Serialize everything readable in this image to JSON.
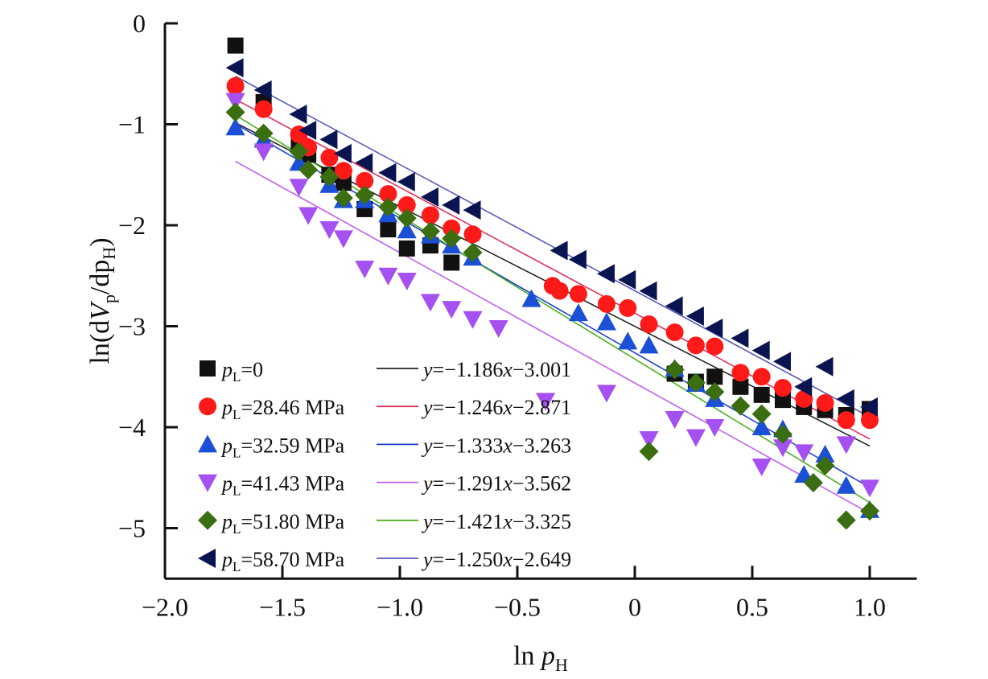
{
  "chart_data": {
    "type": "scatter",
    "xlabel": "ln p_H",
    "ylabel": "ln(dV_p/dp_H)",
    "xlim": [
      -2.0,
      1.2
    ],
    "ylim": [
      -5.5,
      0
    ],
    "xticks": [
      "−2.0",
      "−1.5",
      "−1.0",
      "−0.5",
      "0",
      "0.5",
      "1.0"
    ],
    "xtick_values": [
      -2.0,
      -1.5,
      -1.0,
      -0.5,
      0,
      0.5,
      1.0
    ],
    "yticks": [
      "0",
      "−1",
      "−2",
      "−3",
      "−4",
      "−5"
    ],
    "ytick_values": [
      0,
      -1,
      -2,
      -3,
      -4,
      -5
    ],
    "grid": false,
    "legend_placement": "bottom-left",
    "series": [
      {
        "name": "p_L=0",
        "label_sub": "L",
        "label_rest": "=0",
        "marker": "square",
        "color": "#111111",
        "fit": {
          "label": "y=−1.186x−3.001",
          "slope": -1.186,
          "intercept": -3.001,
          "color": "#222222"
        },
        "points": [
          [
            -1.7,
            -0.22
          ],
          [
            -1.58,
            -0.78
          ],
          [
            -1.43,
            -1.2
          ],
          [
            -1.39,
            -1.3
          ],
          [
            -1.3,
            -1.5
          ],
          [
            -1.24,
            -1.58
          ],
          [
            -1.15,
            -1.84
          ],
          [
            -1.05,
            -2.04
          ],
          [
            -0.97,
            -2.23
          ],
          [
            -0.87,
            -2.2
          ],
          [
            -0.78,
            -2.37
          ],
          [
            0.17,
            -3.47
          ],
          [
            0.26,
            -3.55
          ],
          [
            0.34,
            -3.5
          ],
          [
            0.45,
            -3.6
          ],
          [
            0.54,
            -3.68
          ],
          [
            0.63,
            -3.73
          ],
          [
            0.72,
            -3.8
          ],
          [
            0.81,
            -3.83
          ],
          [
            0.9,
            -3.88
          ],
          [
            1.0,
            -3.82
          ]
        ]
      },
      {
        "name": "p_L=28.46 MPa",
        "label_sub": "L",
        "label_rest": "=28.46 MPa",
        "marker": "circle",
        "color": "#ff1a1a",
        "fit": {
          "label": "y=−1.246x−2.871",
          "slope": -1.246,
          "intercept": -2.871,
          "color": "#e0305a"
        },
        "points": [
          [
            -1.7,
            -0.62
          ],
          [
            -1.58,
            -0.85
          ],
          [
            -1.43,
            -1.1
          ],
          [
            -1.39,
            -1.23
          ],
          [
            -1.3,
            -1.33
          ],
          [
            -1.24,
            -1.46
          ],
          [
            -1.15,
            -1.56
          ],
          [
            -1.05,
            -1.69
          ],
          [
            -0.97,
            -1.8
          ],
          [
            -0.87,
            -1.9
          ],
          [
            -0.78,
            -2.03
          ],
          [
            -0.69,
            -2.09
          ],
          [
            -0.35,
            -2.6
          ],
          [
            -0.32,
            -2.65
          ],
          [
            -0.24,
            -2.68
          ],
          [
            -0.12,
            -2.78
          ],
          [
            -0.03,
            -2.82
          ],
          [
            0.06,
            -2.98
          ],
          [
            0.17,
            -3.06
          ],
          [
            0.26,
            -3.19
          ],
          [
            0.34,
            -3.2
          ],
          [
            0.45,
            -3.46
          ],
          [
            0.54,
            -3.5
          ],
          [
            0.63,
            -3.61
          ],
          [
            0.72,
            -3.72
          ],
          [
            0.81,
            -3.76
          ],
          [
            0.9,
            -3.93
          ],
          [
            1.0,
            -3.93
          ]
        ]
      },
      {
        "name": "p_L=32.59 MPa",
        "label_sub": "L",
        "label_rest": "=32.59 MPa",
        "marker": "triangle-up",
        "color": "#1a4fd6",
        "fit": {
          "label": "y=−1.333x−3.263",
          "slope": -1.333,
          "intercept": -3.263,
          "color": "#2040d0"
        },
        "points": [
          [
            -1.7,
            -1.03
          ],
          [
            -1.58,
            -1.15
          ],
          [
            -1.43,
            -1.38
          ],
          [
            -1.3,
            -1.6
          ],
          [
            -1.24,
            -1.75
          ],
          [
            -1.15,
            -1.75
          ],
          [
            -1.05,
            -1.89
          ],
          [
            -0.97,
            -2.05
          ],
          [
            -0.87,
            -2.1
          ],
          [
            -0.78,
            -2.2
          ],
          [
            -0.69,
            -2.32
          ],
          [
            -0.44,
            -2.73
          ],
          [
            -0.24,
            -2.87
          ],
          [
            -0.12,
            -2.96
          ],
          [
            -0.03,
            -3.15
          ],
          [
            0.06,
            -3.19
          ],
          [
            0.17,
            -3.42
          ],
          [
            0.26,
            -3.57
          ],
          [
            0.34,
            -3.72
          ],
          [
            0.54,
            -4.0
          ],
          [
            0.63,
            -4.02
          ],
          [
            0.72,
            -4.47
          ],
          [
            0.81,
            -4.27
          ],
          [
            0.9,
            -4.58
          ],
          [
            1.0,
            -4.82
          ]
        ]
      },
      {
        "name": "p_L=41.43 MPa",
        "label_sub": "L",
        "label_rest": "=41.43 MPa",
        "marker": "triangle-down",
        "color": "#a550f0",
        "fit": {
          "label": "y=−1.291x−3.562",
          "slope": -1.291,
          "intercept": -3.562,
          "color": "#c060f0"
        },
        "points": [
          [
            -1.7,
            -0.77
          ],
          [
            -1.58,
            -1.27
          ],
          [
            -1.43,
            -1.62
          ],
          [
            -1.39,
            -1.9
          ],
          [
            -1.3,
            -2.04
          ],
          [
            -1.24,
            -2.13
          ],
          [
            -1.15,
            -2.43
          ],
          [
            -1.05,
            -2.5
          ],
          [
            -0.97,
            -2.55
          ],
          [
            -0.87,
            -2.76
          ],
          [
            -0.78,
            -2.83
          ],
          [
            -0.69,
            -2.93
          ],
          [
            -0.58,
            -3.02
          ],
          [
            -0.38,
            -3.74
          ],
          [
            -0.12,
            -3.66
          ],
          [
            0.06,
            -4.12
          ],
          [
            0.17,
            -3.92
          ],
          [
            0.26,
            -4.1
          ],
          [
            0.34,
            -4.0
          ],
          [
            0.54,
            -4.39
          ],
          [
            0.63,
            -4.2
          ],
          [
            0.72,
            -4.25
          ],
          [
            0.9,
            -4.17
          ],
          [
            1.0,
            -4.6
          ]
        ]
      },
      {
        "name": "p_L=51.80 MPa",
        "label_sub": "L",
        "label_rest": "=51.80 MPa",
        "marker": "diamond",
        "color": "#3a6e10",
        "fit": {
          "label": "y=−1.421x−3.325",
          "slope": -1.421,
          "intercept": -3.325,
          "color": "#4cb020"
        },
        "points": [
          [
            -1.7,
            -0.88
          ],
          [
            -1.58,
            -1.09
          ],
          [
            -1.43,
            -1.27
          ],
          [
            -1.39,
            -1.45
          ],
          [
            -1.3,
            -1.52
          ],
          [
            -1.24,
            -1.73
          ],
          [
            -1.15,
            -1.7
          ],
          [
            -1.05,
            -1.82
          ],
          [
            -0.97,
            -1.93
          ],
          [
            -0.87,
            -2.06
          ],
          [
            -0.78,
            -2.13
          ],
          [
            -0.69,
            -2.27
          ],
          [
            0.06,
            -4.24
          ],
          [
            0.17,
            -3.43
          ],
          [
            0.26,
            -3.56
          ],
          [
            0.34,
            -3.65
          ],
          [
            0.45,
            -3.79
          ],
          [
            0.54,
            -3.87
          ],
          [
            0.63,
            -4.07
          ],
          [
            0.76,
            -4.55
          ],
          [
            0.81,
            -4.38
          ],
          [
            0.9,
            -4.92
          ],
          [
            1.0,
            -4.83
          ]
        ]
      },
      {
        "name": "p_L=58.70 MPa",
        "label_sub": "L",
        "label_rest": "=58.70 MPa",
        "marker": "triangle-left",
        "color": "#0a1450",
        "fit": {
          "label": "y=−1.250x−2.649",
          "slope": -1.25,
          "intercept": -2.649,
          "color": "#5a5ab8"
        },
        "points": [
          [
            -1.7,
            -0.44
          ],
          [
            -1.58,
            -0.66
          ],
          [
            -1.43,
            -0.9
          ],
          [
            -1.39,
            -1.06
          ],
          [
            -1.3,
            -1.15
          ],
          [
            -1.24,
            -1.29
          ],
          [
            -1.15,
            -1.38
          ],
          [
            -1.05,
            -1.48
          ],
          [
            -0.97,
            -1.57
          ],
          [
            -0.87,
            -1.72
          ],
          [
            -0.78,
            -1.8
          ],
          [
            -0.69,
            -1.85
          ],
          [
            -0.32,
            -2.25
          ],
          [
            -0.24,
            -2.34
          ],
          [
            -0.12,
            -2.48
          ],
          [
            -0.03,
            -2.54
          ],
          [
            0.06,
            -2.65
          ],
          [
            0.17,
            -2.8
          ],
          [
            0.26,
            -2.9
          ],
          [
            0.34,
            -3.02
          ],
          [
            0.45,
            -3.12
          ],
          [
            0.54,
            -3.24
          ],
          [
            0.63,
            -3.35
          ],
          [
            0.72,
            -3.6
          ],
          [
            0.81,
            -3.4
          ],
          [
            0.9,
            -3.72
          ],
          [
            1.0,
            -3.8
          ]
        ]
      }
    ],
    "fit_xrange": [
      -1.7,
      1.0
    ]
  }
}
